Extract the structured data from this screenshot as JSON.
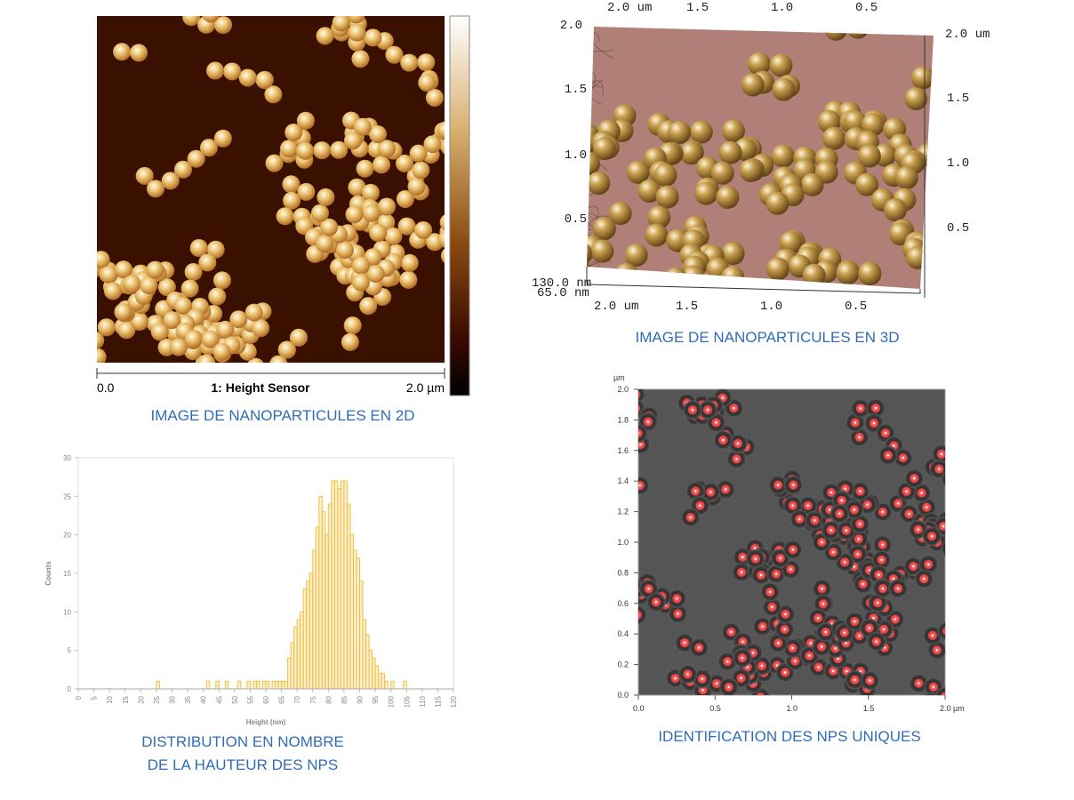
{
  "panel_2d": {
    "caption": "IMAGE DE NANOPARTICULES EN 2D",
    "scale_start": "0.0",
    "channel": "1: Height Sensor",
    "scale_end": "2.0 µm"
  },
  "panel_3d": {
    "caption": "IMAGE DE NANOPARTICULES EN 3D",
    "top_labels": [
      "2.0 um",
      "1.5",
      "1.0",
      "0.5"
    ],
    "left_labels": [
      "2.0",
      "1.5",
      "1.0",
      "0.5"
    ],
    "right_labels": [
      "2.0 um",
      "1.5",
      "1.0",
      "0.5"
    ],
    "bottom_labels": [
      "2.0 um",
      "1.5",
      "1.0",
      "0.5"
    ],
    "z_labels": [
      "130.0 nm",
      "65.0 nm"
    ]
  },
  "panel_identification": {
    "caption": "IDENTIFICATION DES NPS UNIQUES",
    "unit": "µm",
    "y_labels": [
      "0.0",
      "0.2",
      "0.4",
      "0.6",
      "0.8",
      "1.0",
      "1.2",
      "1.4",
      "1.6",
      "1.8",
      "2.0"
    ],
    "x_labels": [
      "0.0",
      "0.5",
      "1.0",
      "1.5",
      "2.0 µm"
    ]
  },
  "chart_data": {
    "type": "histogram",
    "caption": [
      "DISTRIBUTION EN NOMBRE",
      "DE LA HAUTEUR DES NPS"
    ],
    "x_label": "Height (nm)",
    "y_label": "Counts",
    "bins": [
      24,
      25,
      26,
      27,
      28,
      29,
      30,
      31,
      32,
      33,
      34,
      35,
      36,
      37,
      38,
      39,
      40,
      41,
      42,
      43,
      44,
      45,
      46,
      47,
      48,
      49,
      50,
      51,
      52,
      53,
      54,
      55,
      56,
      57,
      58,
      59,
      60,
      61,
      62,
      63,
      64,
      65,
      66,
      67,
      68,
      69,
      70,
      71,
      72,
      73,
      74,
      75,
      76,
      77,
      78,
      79,
      80,
      81,
      82,
      83,
      84,
      85,
      86,
      87,
      88,
      89,
      90,
      91,
      92,
      93,
      94,
      95,
      96,
      97,
      98,
      99,
      100,
      101,
      102,
      103,
      104,
      105,
      106
    ],
    "counts": [
      0,
      1,
      0,
      0,
      0,
      0,
      0,
      0,
      0,
      0,
      0,
      0,
      0,
      0,
      0,
      0,
      0,
      1,
      0,
      0,
      1,
      0,
      0,
      1,
      0,
      0,
      0,
      1,
      0,
      0,
      1,
      0,
      1,
      1,
      0,
      1,
      1,
      0,
      1,
      1,
      1,
      1,
      1,
      4,
      6,
      8,
      9,
      10,
      13,
      14,
      15,
      18,
      21,
      25,
      23,
      20,
      24,
      27,
      27,
      26,
      27,
      27,
      24,
      20,
      18,
      17,
      14,
      9,
      7,
      5,
      4,
      3,
      2,
      2,
      1,
      0,
      1,
      0,
      0,
      0,
      1,
      0
    ],
    "color": "#f0c040",
    "xlim": [
      0,
      120
    ],
    "ylim": [
      0,
      30
    ],
    "xticks": [
      0,
      5,
      10,
      15,
      20,
      25,
      30,
      35,
      40,
      45,
      50,
      55,
      60,
      65,
      70,
      75,
      80,
      85,
      90,
      95,
      100,
      105,
      110,
      115,
      120
    ],
    "yticks": [
      0,
      5,
      10,
      15,
      20,
      25,
      30
    ],
    "grid": false
  }
}
